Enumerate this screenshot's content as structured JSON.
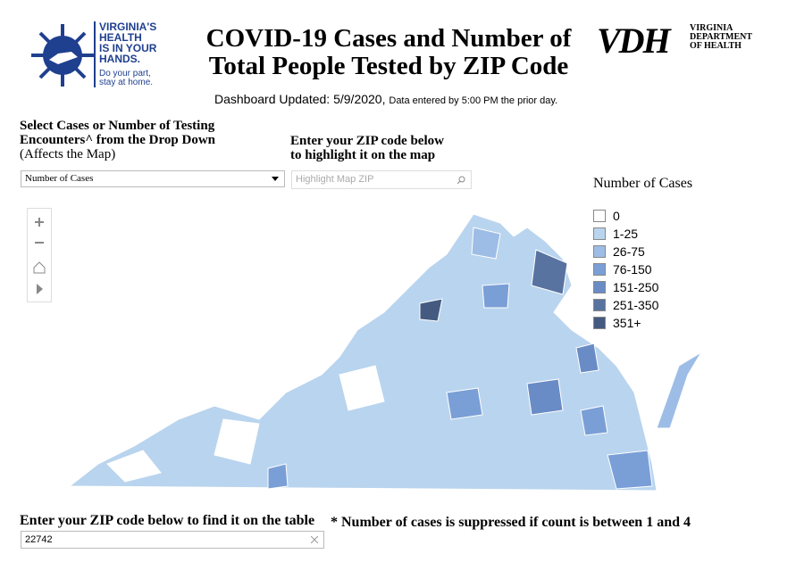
{
  "header": {
    "logo_text": [
      "VIRGINIA'S",
      "HEALTH",
      "IS IN YOUR",
      "HANDS."
    ],
    "logo_tagline": [
      "Do your part,",
      "stay at home."
    ],
    "title": [
      "COVID-19 Cases and Number of",
      "Total People Tested by ZIP Code"
    ],
    "vdh_logo": "VDH",
    "vdh_name": [
      "VIRGINIA",
      "DEPARTMENT",
      "OF HEALTH"
    ],
    "updated": "Dashboard Updated: 5/9/2020,",
    "updated_note": "Data entered by 5:00 PM the prior day."
  },
  "controls": {
    "dropdown_label": [
      "Select Cases or Number of Testing",
      "Encounters^ from the Drop Down"
    ],
    "dropdown_sub": "(Affects the Map)",
    "dropdown_value": "Number of Cases",
    "zip_label": [
      "Enter your ZIP code below",
      "to highlight it on the map"
    ],
    "zip_placeholder": "Highlight Map ZIP"
  },
  "legend": {
    "title": "Number of Cases",
    "items": [
      {
        "label": "0",
        "color": "#ffffff"
      },
      {
        "label": "1-25",
        "color": "#b9d4ee"
      },
      {
        "label": "26-75",
        "color": "#9dbde6"
      },
      {
        "label": "76-150",
        "color": "#7a9fd6"
      },
      {
        "label": "151-250",
        "color": "#6a8cc6"
      },
      {
        "label": "251-350",
        "color": "#58739f"
      },
      {
        "label": "351+",
        "color": "#445a80"
      }
    ]
  },
  "footer": {
    "zip_label": "Enter your ZIP code below to find it on the table",
    "zip_value": "22742",
    "note": "* Number of cases is suppressed if count is between 1 and 4"
  }
}
